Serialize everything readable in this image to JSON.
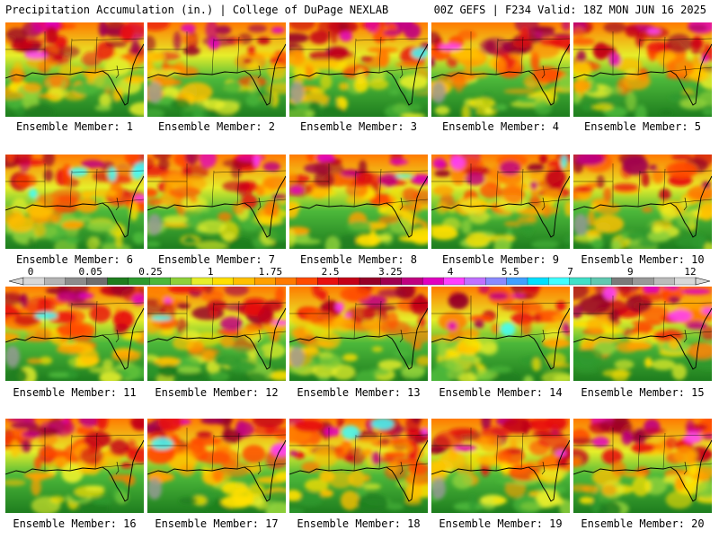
{
  "header": {
    "left": "Precipitation Accumulation (in.) | College of DuPage NEXLAB",
    "right": "00Z GEFS | F234 Valid: 18Z MON JUN 16 2025"
  },
  "colorbar": {
    "labels": [
      "0",
      "0.05",
      "0.25",
      "1",
      "1.75",
      "2.5",
      "3.25",
      "4",
      "5.5",
      "7",
      "9",
      "12"
    ],
    "colors": [
      "#d8d8d8",
      "#b4b4b4",
      "#8c8c8c",
      "#6e6e6e",
      "#1e7d1e",
      "#2e9a2e",
      "#4cb83a",
      "#8fd13a",
      "#e6ee2a",
      "#ffe000",
      "#ffc000",
      "#ffa000",
      "#ff7a00",
      "#ff4a00",
      "#e81010",
      "#c40018",
      "#960028",
      "#a00050",
      "#c00080",
      "#e000c0",
      "#ff40ff",
      "#c070ff",
      "#8a8aff",
      "#40a0ff",
      "#00e0ff",
      "#40ffff",
      "#40e0c8",
      "#60c8b0",
      "#7a7a7a",
      "#989898",
      "#bbbbbb",
      "#d8d8d8"
    ]
  },
  "members": [
    {
      "label": "Ensemble Member: 1"
    },
    {
      "label": "Ensemble Member: 2"
    },
    {
      "label": "Ensemble Member: 3"
    },
    {
      "label": "Ensemble Member: 4"
    },
    {
      "label": "Ensemble Member: 5"
    },
    {
      "label": "Ensemble Member: 6"
    },
    {
      "label": "Ensemble Member: 7"
    },
    {
      "label": "Ensemble Member: 8"
    },
    {
      "label": "Ensemble Member: 9"
    },
    {
      "label": "Ensemble Member: 10"
    },
    {
      "label": "Ensemble Member: 11"
    },
    {
      "label": "Ensemble Member: 12"
    },
    {
      "label": "Ensemble Member: 13"
    },
    {
      "label": "Ensemble Member: 14"
    },
    {
      "label": "Ensemble Member: 15"
    },
    {
      "label": "Ensemble Member: 16"
    },
    {
      "label": "Ensemble Member: 17"
    },
    {
      "label": "Ensemble Member: 18"
    },
    {
      "label": "Ensemble Member: 19"
    },
    {
      "label": "Ensemble Member: 20"
    }
  ]
}
